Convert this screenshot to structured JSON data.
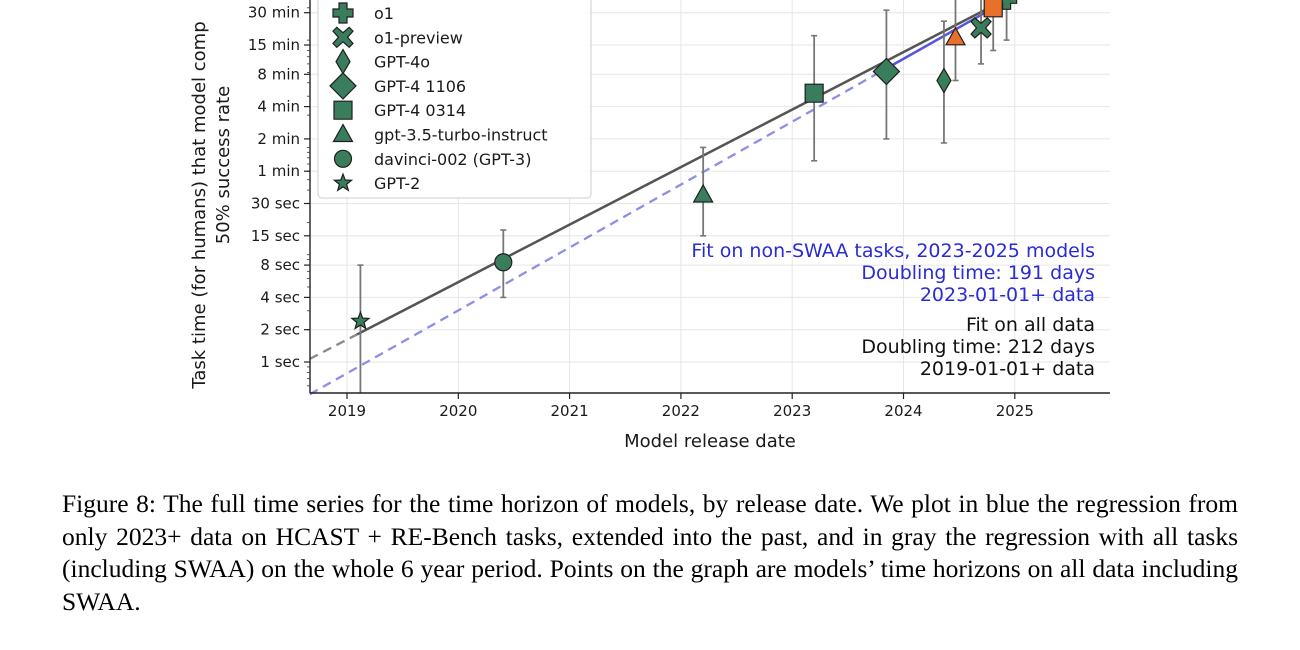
{
  "chart_data": {
    "type": "scatter",
    "xlabel": "Model release date",
    "ylabel_lines": [
      "Task time (for humans) that model comp",
      "50% success rate"
    ],
    "x_ticks": [
      "2019",
      "2020",
      "2021",
      "2022",
      "2023",
      "2024",
      "2025"
    ],
    "y_scale": "log",
    "y_ticks": [
      {
        "label": "1 sec",
        "seconds": 1
      },
      {
        "label": "2 sec",
        "seconds": 2
      },
      {
        "label": "4 sec",
        "seconds": 4
      },
      {
        "label": "8 sec",
        "seconds": 8
      },
      {
        "label": "15 sec",
        "seconds": 15
      },
      {
        "label": "30 sec",
        "seconds": 30
      },
      {
        "label": "1 min",
        "seconds": 60
      },
      {
        "label": "2 min",
        "seconds": 120
      },
      {
        "label": "4 min",
        "seconds": 240
      },
      {
        "label": "8 min",
        "seconds": 480
      },
      {
        "label": "15 min",
        "seconds": 900
      },
      {
        "label": "30 min",
        "seconds": 1800
      }
    ],
    "grid": true,
    "legend_placement": "top-left",
    "series": [
      {
        "name": "o1",
        "marker": "plus",
        "color": "#3a7d5c",
        "x": "2024-12-05",
        "y_seconds": 2400,
        "ci_seconds": [
          1000,
          6000
        ]
      },
      {
        "name": "o1-preview",
        "marker": "x",
        "color": "#3a7d5c",
        "x": "2024-09-12",
        "y_seconds": 1300,
        "ci_seconds": [
          600,
          3200
        ]
      },
      {
        "name": "GPT-4o",
        "marker": "thin_diamond",
        "color": "#3a7d5c",
        "x": "2024-05-13",
        "y_seconds": 420,
        "ci_seconds": [
          110,
          1500
        ]
      },
      {
        "name": "GPT-4 1106",
        "marker": "diamond",
        "color": "#3a7d5c",
        "x": "2023-11-06",
        "y_seconds": 510,
        "ci_seconds": [
          120,
          1900
        ]
      },
      {
        "name": "GPT-4 0314",
        "marker": "square",
        "color": "#3a7d5c",
        "x": "2023-03-14",
        "y_seconds": 320,
        "ci_seconds": [
          75,
          1100
        ]
      },
      {
        "name": "gpt-3.5-turbo-instruct",
        "marker": "triangle",
        "color": "#3a7d5c",
        "x": "2022-03-15",
        "y_seconds": 36,
        "ci_seconds": [
          15,
          100
        ]
      },
      {
        "name": "davinci-002 (GPT-3)",
        "marker": "circle",
        "color": "#3a7d5c",
        "x": "2020-05-28",
        "y_seconds": 8.5,
        "ci_seconds": [
          4,
          17
        ]
      },
      {
        "name": "GPT-2",
        "marker": "star",
        "color": "#3a7d5c",
        "x": "2019-02-14",
        "y_seconds": 2.4,
        "ci_seconds": [
          0.4,
          8
        ]
      }
    ],
    "extra_points": [
      {
        "marker": "triangle",
        "color": "#e8702a",
        "x": "2024-06-20",
        "y_seconds": 1050,
        "ci_seconds": [
          420,
          2800
        ]
      },
      {
        "marker": "square",
        "color": "#e8702a",
        "x": "2024-10-22",
        "y_seconds": 2000,
        "ci_seconds": [
          800,
          5000
        ]
      }
    ],
    "fits": [
      {
        "label_lines": [
          "Fit on non-SWAA tasks, 2023-2025 models",
          "Doubling time: 191 days",
          "2023-01-01+ data"
        ],
        "color": "#3b3bd6",
        "style": "solid from 2023-11-15, dashed before",
        "x_start": "2018-09-01",
        "x_end": "2025-04-01",
        "y_start_seconds": 0.5,
        "y_end_seconds": 3600
      },
      {
        "label_lines": [
          "Fit on all data",
          "Doubling time: 212 days",
          "2019-01-01+ data"
        ],
        "color": "#555555",
        "style": "solid from 2019-02-01, dashed before",
        "x_start": "2018-09-01",
        "x_end": "2025-04-01",
        "y_start_seconds": 1.07,
        "y_end_seconds": 3600
      }
    ]
  },
  "caption": "Figure 8: The full time series for the time horizon of models, by release date. We plot in blue the regression from only 2023+ data on HCAST + RE-Bench tasks, extended into the past, and in gray the regression with all tasks (including SWAA) on the whole 6 year period. Points on the graph are models’ time horizons on all data including SWAA."
}
